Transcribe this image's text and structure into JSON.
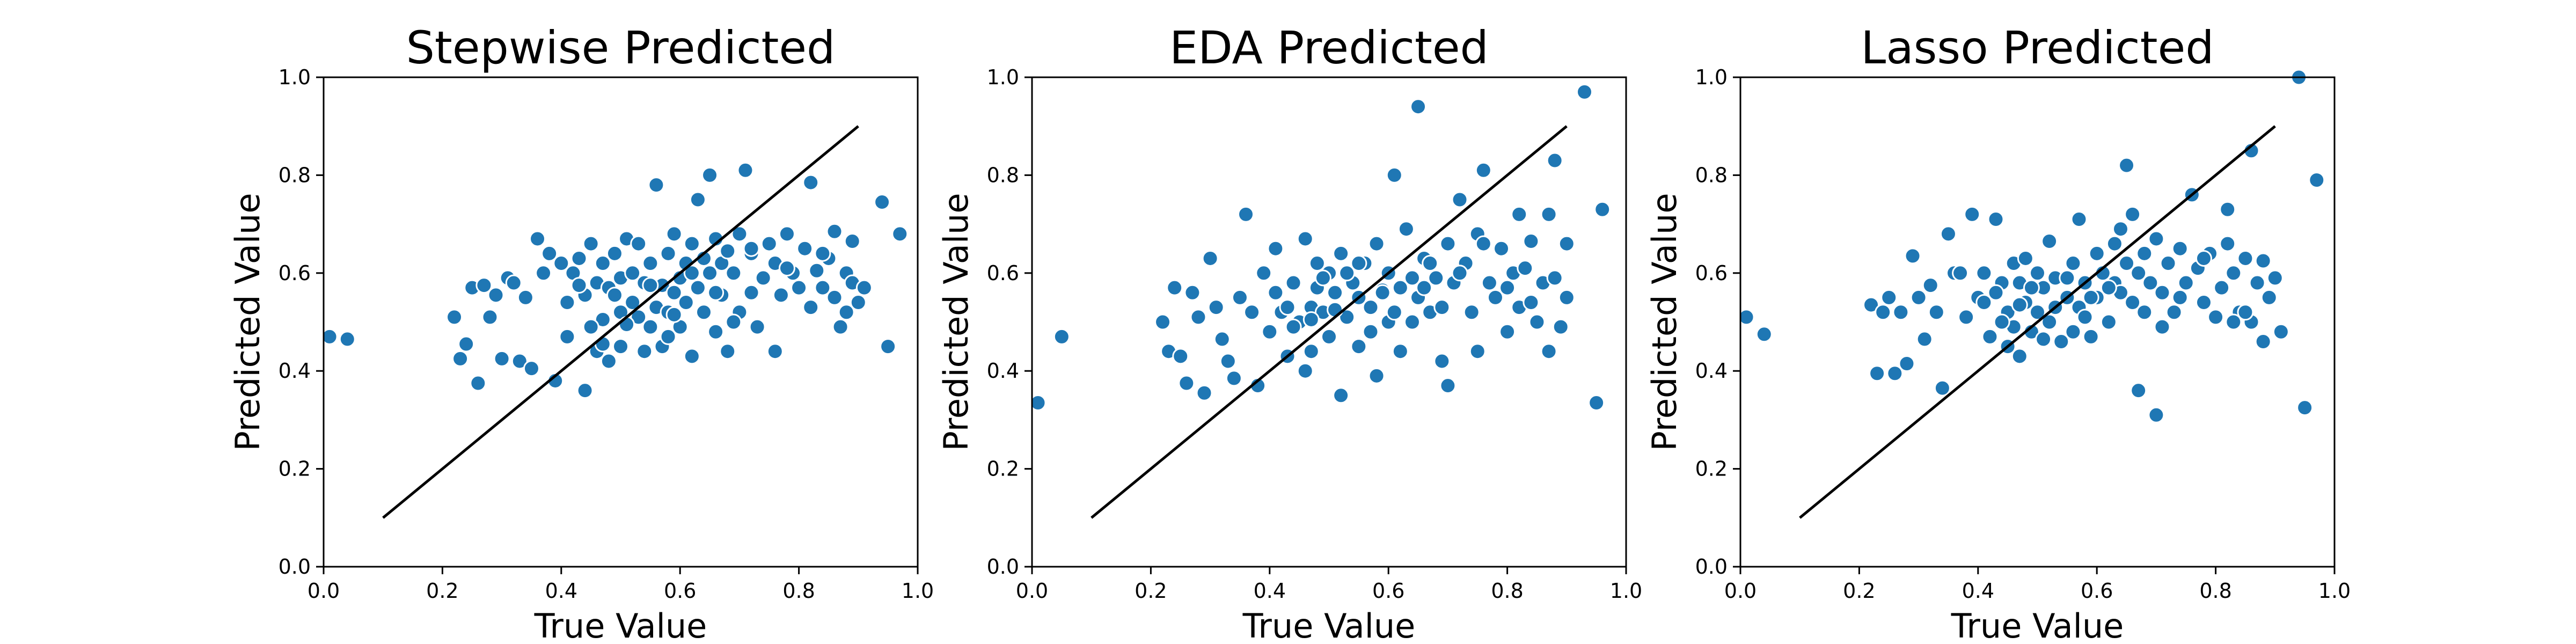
{
  "chart_data": [
    {
      "type": "scatter",
      "title": "Stepwise Predicted",
      "xlabel": "True Value",
      "ylabel": "Predicted Value",
      "xlim": [
        0.0,
        1.0
      ],
      "ylim": [
        0.0,
        1.0
      ],
      "xticks": [
        "0.0",
        "0.2",
        "0.4",
        "0.6",
        "0.8",
        "1.0"
      ],
      "yticks": [
        "0.0",
        "0.2",
        "0.4",
        "0.6",
        "0.8",
        "1.0"
      ],
      "grid": false,
      "point_color": "#1f77b4",
      "reference_line": {
        "x": [
          0.1,
          0.9
        ],
        "y": [
          0.1,
          0.9
        ],
        "color": "#000000"
      },
      "points": [
        [
          0.01,
          0.47
        ],
        [
          0.04,
          0.465
        ],
        [
          0.22,
          0.51
        ],
        [
          0.23,
          0.425
        ],
        [
          0.24,
          0.455
        ],
        [
          0.25,
          0.57
        ],
        [
          0.26,
          0.375
        ],
        [
          0.27,
          0.575
        ],
        [
          0.28,
          0.51
        ],
        [
          0.29,
          0.555
        ],
        [
          0.3,
          0.425
        ],
        [
          0.31,
          0.59
        ],
        [
          0.32,
          0.58
        ],
        [
          0.33,
          0.42
        ],
        [
          0.34,
          0.55
        ],
        [
          0.35,
          0.405
        ],
        [
          0.36,
          0.67
        ],
        [
          0.38,
          0.64
        ],
        [
          0.39,
          0.38
        ],
        [
          0.4,
          0.62
        ],
        [
          0.41,
          0.47
        ],
        [
          0.42,
          0.6
        ],
        [
          0.43,
          0.63
        ],
        [
          0.44,
          0.555
        ],
        [
          0.45,
          0.66
        ],
        [
          0.46,
          0.44
        ],
        [
          0.46,
          0.58
        ],
        [
          0.47,
          0.62
        ],
        [
          0.47,
          0.505
        ],
        [
          0.48,
          0.42
        ],
        [
          0.48,
          0.57
        ],
        [
          0.49,
          0.64
        ],
        [
          0.49,
          0.555
        ],
        [
          0.5,
          0.59
        ],
        [
          0.5,
          0.45
        ],
        [
          0.51,
          0.67
        ],
        [
          0.52,
          0.54
        ],
        [
          0.52,
          0.6
        ],
        [
          0.53,
          0.51
        ],
        [
          0.53,
          0.66
        ],
        [
          0.54,
          0.58
        ],
        [
          0.55,
          0.49
        ],
        [
          0.55,
          0.62
        ],
        [
          0.56,
          0.53
        ],
        [
          0.56,
          0.78
        ],
        [
          0.57,
          0.575
        ],
        [
          0.57,
          0.45
        ],
        [
          0.58,
          0.64
        ],
        [
          0.58,
          0.52
        ],
        [
          0.59,
          0.56
        ],
        [
          0.59,
          0.68
        ],
        [
          0.6,
          0.59
        ],
        [
          0.6,
          0.49
        ],
        [
          0.61,
          0.62
        ],
        [
          0.61,
          0.54
        ],
        [
          0.62,
          0.66
        ],
        [
          0.62,
          0.43
        ],
        [
          0.63,
          0.57
        ],
        [
          0.63,
          0.75
        ],
        [
          0.64,
          0.63
        ],
        [
          0.64,
          0.52
        ],
        [
          0.65,
          0.8
        ],
        [
          0.65,
          0.6
        ],
        [
          0.66,
          0.67
        ],
        [
          0.66,
          0.48
        ],
        [
          0.67,
          0.62
        ],
        [
          0.67,
          0.555
        ],
        [
          0.68,
          0.645
        ],
        [
          0.68,
          0.44
        ],
        [
          0.69,
          0.6
        ],
        [
          0.7,
          0.52
        ],
        [
          0.7,
          0.68
        ],
        [
          0.71,
          0.81
        ],
        [
          0.72,
          0.64
        ],
        [
          0.72,
          0.56
        ],
        [
          0.73,
          0.49
        ],
        [
          0.74,
          0.59
        ],
        [
          0.75,
          0.66
        ],
        [
          0.76,
          0.62
        ],
        [
          0.76,
          0.44
        ],
        [
          0.77,
          0.555
        ],
        [
          0.78,
          0.68
        ],
        [
          0.79,
          0.6
        ],
        [
          0.8,
          0.57
        ],
        [
          0.81,
          0.65
        ],
        [
          0.82,
          0.53
        ],
        [
          0.82,
          0.785
        ],
        [
          0.83,
          0.605
        ],
        [
          0.84,
          0.57
        ],
        [
          0.85,
          0.63
        ],
        [
          0.86,
          0.55
        ],
        [
          0.86,
          0.685
        ],
        [
          0.87,
          0.49
        ],
        [
          0.88,
          0.6
        ],
        [
          0.89,
          0.665
        ],
        [
          0.89,
          0.58
        ],
        [
          0.9,
          0.54
        ],
        [
          0.94,
          0.745
        ],
        [
          0.95,
          0.45
        ],
        [
          0.97,
          0.68
        ],
        [
          0.37,
          0.6
        ],
        [
          0.41,
          0.54
        ],
        [
          0.44,
          0.36
        ],
        [
          0.45,
          0.49
        ],
        [
          0.5,
          0.52
        ],
        [
          0.54,
          0.44
        ],
        [
          0.58,
          0.47
        ],
        [
          0.62,
          0.6
        ],
        [
          0.66,
          0.56
        ],
        [
          0.69,
          0.5
        ],
        [
          0.72,
          0.65
        ],
        [
          0.78,
          0.61
        ],
        [
          0.84,
          0.64
        ],
        [
          0.88,
          0.52
        ],
        [
          0.91,
          0.57
        ],
        [
          0.43,
          0.575
        ],
        [
          0.47,
          0.455
        ],
        [
          0.51,
          0.495
        ],
        [
          0.55,
          0.575
        ],
        [
          0.59,
          0.515
        ]
      ]
    },
    {
      "type": "scatter",
      "title": "EDA Predicted",
      "xlabel": "True Value",
      "ylabel": "Predicted Value",
      "xlim": [
        0.0,
        1.0
      ],
      "ylim": [
        0.0,
        1.0
      ],
      "xticks": [
        "0.0",
        "0.2",
        "0.4",
        "0.6",
        "0.8",
        "1.0"
      ],
      "yticks": [
        "0.0",
        "0.2",
        "0.4",
        "0.6",
        "0.8",
        "1.0"
      ],
      "grid": false,
      "point_color": "#1f77b4",
      "reference_line": {
        "x": [
          0.1,
          0.9
        ],
        "y": [
          0.1,
          0.9
        ],
        "color": "#000000"
      },
      "points": [
        [
          0.01,
          0.335
        ],
        [
          0.05,
          0.47
        ],
        [
          0.22,
          0.5
        ],
        [
          0.23,
          0.44
        ],
        [
          0.24,
          0.57
        ],
        [
          0.25,
          0.43
        ],
        [
          0.26,
          0.375
        ],
        [
          0.27,
          0.56
        ],
        [
          0.28,
          0.51
        ],
        [
          0.29,
          0.355
        ],
        [
          0.3,
          0.63
        ],
        [
          0.31,
          0.53
        ],
        [
          0.32,
          0.465
        ],
        [
          0.33,
          0.42
        ],
        [
          0.34,
          0.385
        ],
        [
          0.35,
          0.55
        ],
        [
          0.36,
          0.72
        ],
        [
          0.38,
          0.37
        ],
        [
          0.39,
          0.6
        ],
        [
          0.4,
          0.48
        ],
        [
          0.41,
          0.65
        ],
        [
          0.42,
          0.52
        ],
        [
          0.43,
          0.43
        ],
        [
          0.44,
          0.58
        ],
        [
          0.45,
          0.5
        ],
        [
          0.46,
          0.67
        ],
        [
          0.47,
          0.53
        ],
        [
          0.47,
          0.44
        ],
        [
          0.48,
          0.62
        ],
        [
          0.48,
          0.57
        ],
        [
          0.49,
          0.52
        ],
        [
          0.5,
          0.6
        ],
        [
          0.5,
          0.47
        ],
        [
          0.51,
          0.56
        ],
        [
          0.52,
          0.35
        ],
        [
          0.52,
          0.64
        ],
        [
          0.53,
          0.51
        ],
        [
          0.54,
          0.58
        ],
        [
          0.55,
          0.55
        ],
        [
          0.55,
          0.45
        ],
        [
          0.56,
          0.62
        ],
        [
          0.57,
          0.53
        ],
        [
          0.58,
          0.39
        ],
        [
          0.58,
          0.66
        ],
        [
          0.59,
          0.565
        ],
        [
          0.6,
          0.6
        ],
        [
          0.6,
          0.5
        ],
        [
          0.61,
          0.8
        ],
        [
          0.62,
          0.57
        ],
        [
          0.62,
          0.44
        ],
        [
          0.63,
          0.69
        ],
        [
          0.64,
          0.59
        ],
        [
          0.65,
          0.55
        ],
        [
          0.65,
          0.94
        ],
        [
          0.66,
          0.63
        ],
        [
          0.67,
          0.52
        ],
        [
          0.67,
          0.62
        ],
        [
          0.68,
          0.59
        ],
        [
          0.69,
          0.42
        ],
        [
          0.7,
          0.66
        ],
        [
          0.7,
          0.37
        ],
        [
          0.71,
          0.58
        ],
        [
          0.72,
          0.75
        ],
        [
          0.73,
          0.62
        ],
        [
          0.74,
          0.52
        ],
        [
          0.75,
          0.68
        ],
        [
          0.75,
          0.44
        ],
        [
          0.76,
          0.81
        ],
        [
          0.77,
          0.58
        ],
        [
          0.78,
          0.55
        ],
        [
          0.79,
          0.65
        ],
        [
          0.8,
          0.48
        ],
        [
          0.81,
          0.6
        ],
        [
          0.82,
          0.72
        ],
        [
          0.82,
          0.53
        ],
        [
          0.83,
          0.61
        ],
        [
          0.84,
          0.665
        ],
        [
          0.85,
          0.5
        ],
        [
          0.86,
          0.58
        ],
        [
          0.87,
          0.72
        ],
        [
          0.87,
          0.44
        ],
        [
          0.88,
          0.83
        ],
        [
          0.88,
          0.59
        ],
        [
          0.89,
          0.49
        ],
        [
          0.9,
          0.66
        ],
        [
          0.9,
          0.55
        ],
        [
          0.93,
          0.97
        ],
        [
          0.95,
          0.335
        ],
        [
          0.96,
          0.73
        ],
        [
          0.89,
          0.49
        ],
        [
          0.37,
          0.52
        ],
        [
          0.41,
          0.56
        ],
        [
          0.44,
          0.49
        ],
        [
          0.46,
          0.4
        ],
        [
          0.49,
          0.59
        ],
        [
          0.53,
          0.6
        ],
        [
          0.57,
          0.48
        ],
        [
          0.61,
          0.52
        ],
        [
          0.64,
          0.5
        ],
        [
          0.66,
          0.57
        ],
        [
          0.69,
          0.53
        ],
        [
          0.72,
          0.6
        ],
        [
          0.76,
          0.66
        ],
        [
          0.8,
          0.57
        ],
        [
          0.84,
          0.54
        ],
        [
          0.43,
          0.53
        ],
        [
          0.47,
          0.505
        ],
        [
          0.51,
          0.525
        ],
        [
          0.55,
          0.62
        ],
        [
          0.59,
          0.56
        ]
      ]
    },
    {
      "type": "scatter",
      "title": "Lasso Predicted",
      "xlabel": "True Value",
      "ylabel": "Predicted Value",
      "xlim": [
        0.0,
        1.0
      ],
      "ylim": [
        0.0,
        1.0
      ],
      "xticks": [
        "0.0",
        "0.2",
        "0.4",
        "0.6",
        "0.8",
        "1.0"
      ],
      "yticks": [
        "0.0",
        "0.2",
        "0.4",
        "0.6",
        "0.8",
        "1.0"
      ],
      "grid": false,
      "point_color": "#1f77b4",
      "reference_line": {
        "x": [
          0.1,
          0.9
        ],
        "y": [
          0.1,
          0.9
        ],
        "color": "#000000"
      },
      "points": [
        [
          0.01,
          0.51
        ],
        [
          0.04,
          0.475
        ],
        [
          0.22,
          0.535
        ],
        [
          0.23,
          0.395
        ],
        [
          0.24,
          0.52
        ],
        [
          0.25,
          0.55
        ],
        [
          0.26,
          0.395
        ],
        [
          0.27,
          0.52
        ],
        [
          0.28,
          0.415
        ],
        [
          0.29,
          0.635
        ],
        [
          0.3,
          0.55
        ],
        [
          0.31,
          0.465
        ],
        [
          0.32,
          0.575
        ],
        [
          0.33,
          0.52
        ],
        [
          0.34,
          0.365
        ],
        [
          0.35,
          0.68
        ],
        [
          0.36,
          0.6
        ],
        [
          0.38,
          0.51
        ],
        [
          0.39,
          0.72
        ],
        [
          0.4,
          0.55
        ],
        [
          0.41,
          0.6
        ],
        [
          0.42,
          0.47
        ],
        [
          0.43,
          0.71
        ],
        [
          0.44,
          0.58
        ],
        [
          0.45,
          0.52
        ],
        [
          0.46,
          0.62
        ],
        [
          0.46,
          0.49
        ],
        [
          0.47,
          0.58
        ],
        [
          0.47,
          0.43
        ],
        [
          0.48,
          0.63
        ],
        [
          0.48,
          0.54
        ],
        [
          0.49,
          0.48
        ],
        [
          0.5,
          0.6
        ],
        [
          0.5,
          0.52
        ],
        [
          0.51,
          0.57
        ],
        [
          0.52,
          0.665
        ],
        [
          0.52,
          0.5
        ],
        [
          0.53,
          0.59
        ],
        [
          0.54,
          0.46
        ],
        [
          0.55,
          0.55
        ],
        [
          0.56,
          0.62
        ],
        [
          0.57,
          0.53
        ],
        [
          0.57,
          0.71
        ],
        [
          0.58,
          0.58
        ],
        [
          0.59,
          0.47
        ],
        [
          0.6,
          0.64
        ],
        [
          0.6,
          0.55
        ],
        [
          0.61,
          0.6
        ],
        [
          0.62,
          0.5
        ],
        [
          0.63,
          0.66
        ],
        [
          0.63,
          0.58
        ],
        [
          0.64,
          0.69
        ],
        [
          0.64,
          0.56
        ],
        [
          0.65,
          0.82
        ],
        [
          0.65,
          0.62
        ],
        [
          0.66,
          0.54
        ],
        [
          0.66,
          0.72
        ],
        [
          0.67,
          0.6
        ],
        [
          0.67,
          0.36
        ],
        [
          0.68,
          0.64
        ],
        [
          0.69,
          0.58
        ],
        [
          0.7,
          0.31
        ],
        [
          0.7,
          0.67
        ],
        [
          0.71,
          0.56
        ],
        [
          0.72,
          0.62
        ],
        [
          0.73,
          0.52
        ],
        [
          0.74,
          0.65
        ],
        [
          0.75,
          0.58
        ],
        [
          0.76,
          0.76
        ],
        [
          0.77,
          0.61
        ],
        [
          0.78,
          0.54
        ],
        [
          0.79,
          0.64
        ],
        [
          0.8,
          0.51
        ],
        [
          0.81,
          0.57
        ],
        [
          0.82,
          0.66
        ],
        [
          0.82,
          0.73
        ],
        [
          0.83,
          0.6
        ],
        [
          0.84,
          0.52
        ],
        [
          0.85,
          0.63
        ],
        [
          0.86,
          0.85
        ],
        [
          0.86,
          0.5
        ],
        [
          0.87,
          0.58
        ],
        [
          0.88,
          0.46
        ],
        [
          0.88,
          0.625
        ],
        [
          0.89,
          0.55
        ],
        [
          0.9,
          0.59
        ],
        [
          0.91,
          0.48
        ],
        [
          0.94,
          1.0
        ],
        [
          0.95,
          0.325
        ],
        [
          0.97,
          0.79
        ],
        [
          0.37,
          0.6
        ],
        [
          0.41,
          0.54
        ],
        [
          0.44,
          0.5
        ],
        [
          0.45,
          0.45
        ],
        [
          0.49,
          0.57
        ],
        [
          0.53,
          0.53
        ],
        [
          0.56,
          0.48
        ],
        [
          0.59,
          0.55
        ],
        [
          0.62,
          0.57
        ],
        [
          0.68,
          0.52
        ],
        [
          0.71,
          0.49
        ],
        [
          0.74,
          0.55
        ],
        [
          0.78,
          0.63
        ],
        [
          0.83,
          0.5
        ],
        [
          0.85,
          0.52
        ],
        [
          0.43,
          0.56
        ],
        [
          0.47,
          0.535
        ],
        [
          0.51,
          0.465
        ],
        [
          0.55,
          0.59
        ],
        [
          0.58,
          0.51
        ]
      ]
    }
  ]
}
